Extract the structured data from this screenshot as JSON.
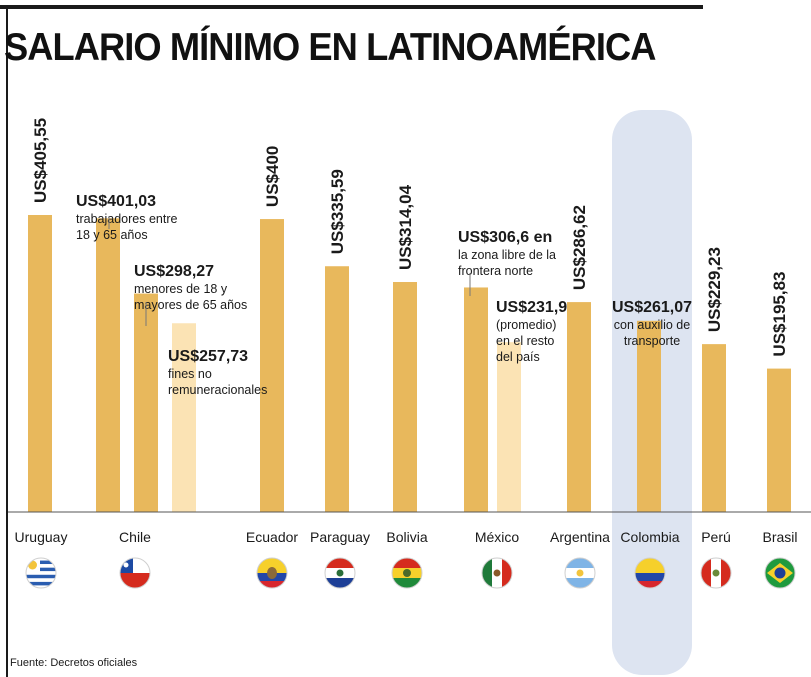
{
  "chart_data": {
    "type": "bar",
    "title": "SALARIO MÍNIMO EN LATINOAMÉRICA",
    "source": "Fuente: Decretos oficiales",
    "unit": "US$",
    "ylim": [
      0,
      430
    ],
    "highlighted": "Colombia",
    "colors": {
      "main": "#e8b85c",
      "light": "#fbe3b4",
      "highlight_band": "#dde4f1"
    },
    "bars": [
      {
        "country": "Uruguay",
        "group": 0,
        "value": 405.55,
        "label": "US$405,55",
        "label_style": "vertical",
        "style": "main"
      },
      {
        "country": "Chile",
        "group": 1,
        "value": 401.03,
        "label": "US$401,03",
        "label_style": "annotation",
        "note": [
          "trabajadores entre",
          "18 y 65 años"
        ],
        "style": "main"
      },
      {
        "country": "Chile",
        "group": 1,
        "value": 298.27,
        "label": "US$298,27",
        "label_style": "annotation",
        "note": [
          "menores de 18 y",
          "mayores de 65 años"
        ],
        "style": "main"
      },
      {
        "country": "Chile",
        "group": 1,
        "value": 257.73,
        "label": "US$257,73",
        "label_style": "annotation",
        "note": [
          "fines no",
          "remuneracionales"
        ],
        "style": "light"
      },
      {
        "country": "Ecuador",
        "group": 2,
        "value": 400,
        "label": "US$400",
        "label_style": "vertical",
        "style": "main"
      },
      {
        "country": "Paraguay",
        "group": 3,
        "value": 335.59,
        "label": "US$335,59",
        "label_style": "vertical",
        "style": "main"
      },
      {
        "country": "Bolivia",
        "group": 4,
        "value": 314.04,
        "label": "US$314,04",
        "label_style": "vertical",
        "style": "main"
      },
      {
        "country": "México",
        "group": 5,
        "value": 306.6,
        "label": "US$306,6 en",
        "label_style": "annotation",
        "note": [
          "la zona libre de la",
          "frontera norte"
        ],
        "style": "main"
      },
      {
        "country": "México",
        "group": 5,
        "value": 231.9,
        "label": "US$231,9",
        "label_style": "annotation",
        "note": [
          "(promedio)",
          "en el resto",
          "del país"
        ],
        "style": "light"
      },
      {
        "country": "Argentina",
        "group": 6,
        "value": 286.62,
        "label": "US$286,62",
        "label_style": "vertical",
        "style": "main"
      },
      {
        "country": "Colombia",
        "group": 7,
        "value": 261.07,
        "label": "US$261,07",
        "label_style": "annotation",
        "note": [
          "con auxilio de",
          "transporte"
        ],
        "style": "main"
      },
      {
        "country": "Perú",
        "group": 8,
        "value": 229.23,
        "label": "US$229,23",
        "label_style": "vertical",
        "style": "main"
      },
      {
        "country": "Brasil",
        "group": 9,
        "value": 195.83,
        "label": "US$195,83",
        "label_style": "vertical",
        "style": "main"
      }
    ],
    "countries": [
      {
        "name": "Uruguay",
        "flag": "uruguay-flag"
      },
      {
        "name": "Chile",
        "flag": "chile-flag"
      },
      {
        "name": "Ecuador",
        "flag": "ecuador-flag"
      },
      {
        "name": "Paraguay",
        "flag": "paraguay-flag"
      },
      {
        "name": "Bolivia",
        "flag": "bolivia-flag"
      },
      {
        "name": "México",
        "flag": "mexico-flag"
      },
      {
        "name": "Argentina",
        "flag": "argentina-flag"
      },
      {
        "name": "Colombia",
        "flag": "colombia-flag"
      },
      {
        "name": "Perú",
        "flag": "peru-flag"
      },
      {
        "name": "Brasil",
        "flag": "brasil-flag"
      }
    ]
  }
}
